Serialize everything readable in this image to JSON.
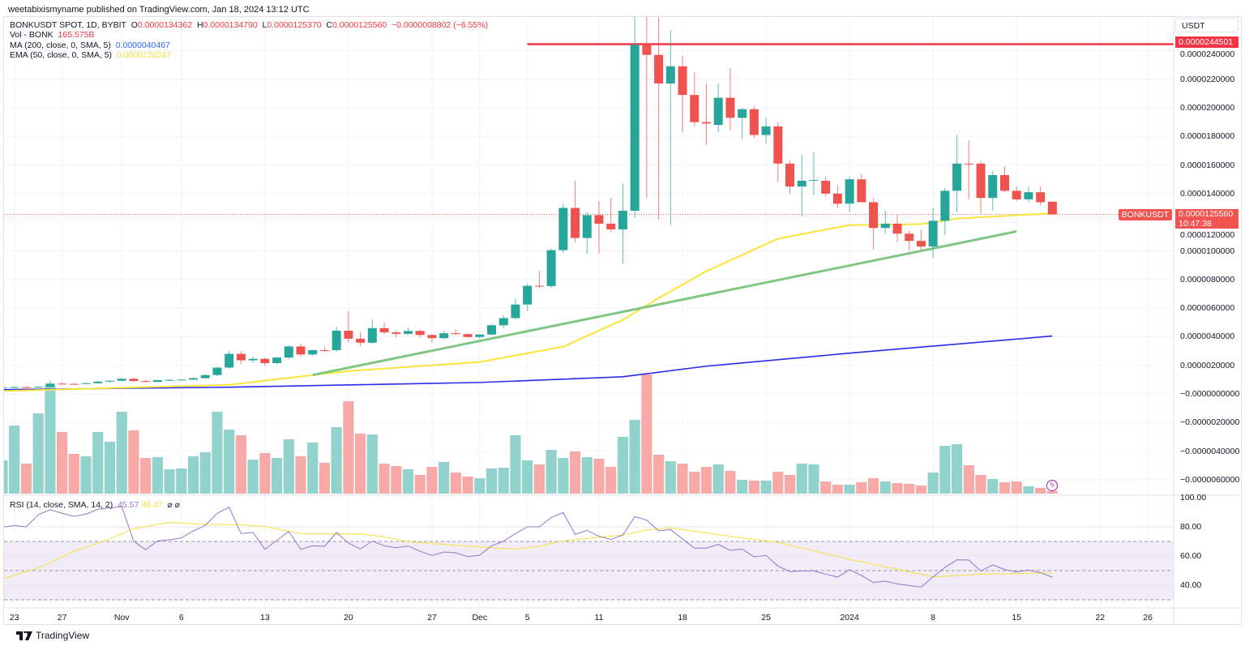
{
  "header": {
    "published": "weetabixismyname published on TradingView.com, Jan 18, 2024 13:12 UTC"
  },
  "legend": {
    "symbol": "BONKUSDT SPOT, 1D, BYBIT",
    "o_label": "O",
    "o": "0.0000134362",
    "h_label": "H",
    "h": "0.0000134790",
    "l_label": "L",
    "l": "0.0000125370",
    "c_label": "C",
    "c": "0.0000125560",
    "change": "−0.0000008802 (−6.55%)",
    "vol_label": "Vol - BONK",
    "vol": "165.575B",
    "ma_label": "MA (200, close, 0, SMA, 5)",
    "ma": "0.0000040467",
    "ema_label": "EMA (50, close, 0, SMA, 5)",
    "ema": "0.0000126247"
  },
  "rsi_legend": {
    "label": "RSI (14, close, SMA, 14, 2)",
    "rsi": "45.57",
    "rsi_ma": "48.47",
    "icons": "⌀ ⌀"
  },
  "price_axis": {
    "currency": "USDT",
    "ticks": [
      [
        "0.0000240000",
        2.4e-05
      ],
      [
        "0.0000220000",
        2.2e-05
      ],
      [
        "0.0000200000",
        2e-05
      ],
      [
        "0.0000180000",
        1.8e-05
      ],
      [
        "0.0000160000",
        1.6e-05
      ],
      [
        "0.0000140000",
        1.4e-05
      ],
      [
        "0.0000120000",
        1.2e-05
      ],
      [
        "0.0000100000",
        1e-05
      ],
      [
        "0.0000080000",
        8e-06
      ],
      [
        "0.0000060000",
        6e-06
      ],
      [
        "0.0000040000",
        4e-06
      ],
      [
        "0.0000020000",
        2e-06
      ],
      [
        "−0.0000000000",
        0
      ],
      [
        "−0.0000020000",
        -2e-06
      ],
      [
        "−0.0000040000",
        -4e-06
      ],
      [
        "−0.0000060000",
        -6e-06
      ]
    ],
    "resistance_label": "0.0000244501",
    "symbol_tag": "BONKUSDT",
    "last_price": "0.0000125560",
    "countdown": "10:47:38"
  },
  "rsi_axis": {
    "ticks": [
      [
        "100.00",
        100
      ],
      [
        "80.00",
        80
      ],
      [
        "60.00",
        60
      ],
      [
        "40.00",
        40
      ]
    ],
    "bands": [
      70,
      50,
      30
    ]
  },
  "time_axis": [
    [
      "23",
      "2023-10-23"
    ],
    [
      "27",
      "2023-10-27"
    ],
    [
      "Nov",
      "2023-11-01"
    ],
    [
      "6",
      "2023-11-06"
    ],
    [
      "13",
      "2023-11-13"
    ],
    [
      "20",
      "2023-11-20"
    ],
    [
      "27",
      "2023-11-27"
    ],
    [
      "Dec",
      "2023-12-01"
    ],
    [
      "5",
      "2023-12-05"
    ],
    [
      "11",
      "2023-12-11"
    ],
    [
      "18",
      "2023-12-18"
    ],
    [
      "25",
      "2023-12-25"
    ],
    [
      "2024",
      "2024-01-01"
    ],
    [
      "8",
      "2024-01-08"
    ],
    [
      "15",
      "2024-01-15"
    ],
    [
      "22",
      "2024-01-22"
    ],
    [
      "26",
      "2024-01-26"
    ]
  ],
  "footer": {
    "brand": "TradingView"
  },
  "colors": {
    "up": "#26a69a",
    "down": "#ef5350",
    "vol_up": "#92d2cc",
    "vol_down": "#f7a9a7",
    "ma200": "#2a2ae8",
    "ema50": "#f9e53a",
    "trendline": "#81c784",
    "resistance": "#f23645",
    "rsi": "#9575cd",
    "rsi_ma": "#f7e13d",
    "rsi_band": "#ede7f6"
  },
  "chart_data": {
    "type": "candlestick",
    "symbol": "BONKUSDT",
    "interval": "1D",
    "volume_unit": "B",
    "candles_fields": [
      "date",
      "open",
      "high",
      "low",
      "close",
      "volume"
    ],
    "candles": [
      [
        "2023-10-22",
        4.5e-07,
        5e-07,
        4e-07,
        4.6e-07,
        2050
      ],
      [
        "2023-10-23",
        4.6e-07,
        5e-07,
        4.2e-07,
        4.8e-07,
        4200
      ],
      [
        "2023-10-24",
        4.8e-07,
        5.2e-07,
        4.4e-07,
        4.7e-07,
        1850
      ],
      [
        "2023-10-25",
        4.7e-07,
        5.5e-07,
        4.3e-07,
        5e-07,
        4950
      ],
      [
        "2023-10-26",
        5e-07,
        9.5e-07,
        4.6e-07,
        7.2e-07,
        6650
      ],
      [
        "2023-10-27",
        7.2e-07,
        8.2e-07,
        6.6e-07,
        7e-07,
        3800
      ],
      [
        "2023-10-28",
        7e-07,
        7.8e-07,
        6.5e-07,
        6.9e-07,
        2450
      ],
      [
        "2023-10-29",
        6.9e-07,
        7.8e-07,
        6.6e-07,
        7.5e-07,
        2300
      ],
      [
        "2023-10-30",
        7.5e-07,
        9e-07,
        7.2e-07,
        8.6e-07,
        3800
      ],
      [
        "2023-10-31",
        8.6e-07,
        9.5e-07,
        8e-07,
        9.2e-07,
        3200
      ],
      [
        "2023-11-01",
        9.2e-07,
        1.1e-06,
        8.8e-07,
        1.06e-06,
        5050
      ],
      [
        "2023-11-02",
        1.06e-06,
        1.15e-06,
        8.8e-07,
        9e-07,
        3900
      ],
      [
        "2023-11-03",
        9e-07,
        9.8e-07,
        8e-07,
        8.4e-07,
        2200
      ],
      [
        "2023-11-04",
        8.4e-07,
        1e-06,
        8.2e-07,
        9.6e-07,
        2250
      ],
      [
        "2023-11-05",
        9.6e-07,
        1.04e-06,
        9e-07,
        9.8e-07,
        1500
      ],
      [
        "2023-11-06",
        9.8e-07,
        1.05e-06,
        9.4e-07,
        1e-06,
        1550
      ],
      [
        "2023-11-07",
        1e-06,
        1.15e-06,
        9.6e-07,
        1.1e-06,
        2300
      ],
      [
        "2023-11-08",
        1.1e-06,
        1.35e-06,
        1.06e-06,
        1.32e-06,
        2550
      ],
      [
        "2023-11-09",
        1.32e-06,
        1.9e-06,
        1.25e-06,
        1.84e-06,
        5050
      ],
      [
        "2023-11-10",
        1.84e-06,
        3e-06,
        1.75e-06,
        2.8e-06,
        3950
      ],
      [
        "2023-11-11",
        2.8e-06,
        3e-06,
        2.1e-06,
        2.35e-06,
        3600
      ],
      [
        "2023-11-12",
        2.35e-06,
        2.6e-06,
        2.15e-06,
        2.45e-06,
        2100
      ],
      [
        "2023-11-13",
        2.45e-06,
        2.55e-06,
        1.95e-06,
        2.15e-06,
        2500
      ],
      [
        "2023-11-14",
        2.15e-06,
        2.6e-06,
        2.08e-06,
        2.54e-06,
        2200
      ],
      [
        "2023-11-15",
        2.54e-06,
        3.4e-06,
        2.45e-06,
        3.32e-06,
        3350
      ],
      [
        "2023-11-16",
        3.32e-06,
        3.5e-06,
        2.6e-06,
        2.76e-06,
        2300
      ],
      [
        "2023-11-17",
        2.76e-06,
        3.1e-06,
        2.65e-06,
        3.06e-06,
        3150
      ],
      [
        "2023-11-18",
        3.06e-06,
        3.3e-06,
        2.95e-06,
        3.04e-06,
        1900
      ],
      [
        "2023-11-19",
        3.06e-06,
        4.7e-06,
        2.95e-06,
        4.42e-06,
        4100
      ],
      [
        "2023-11-20",
        4.42e-06,
        5.8e-06,
        3.6e-06,
        3.86e-06,
        5700
      ],
      [
        "2023-11-21",
        3.86e-06,
        4.3e-06,
        3.35e-06,
        3.58e-06,
        3700
      ],
      [
        "2023-11-22",
        3.58e-06,
        5.2e-06,
        3.5e-06,
        4.6e-06,
        3650
      ],
      [
        "2023-11-23",
        4.6e-06,
        5e-06,
        4.15e-06,
        4.3e-06,
        1850
      ],
      [
        "2023-11-24",
        4.3e-06,
        4.45e-06,
        3.95e-06,
        4.2e-06,
        1700
      ],
      [
        "2023-11-25",
        4.2e-06,
        4.65e-06,
        4.14e-06,
        4.4e-06,
        1500
      ],
      [
        "2023-11-26",
        4.4e-06,
        4.5e-06,
        3.94e-06,
        4.12e-06,
        1150
      ],
      [
        "2023-11-27",
        4.12e-06,
        4.2e-06,
        3.6e-06,
        3.9e-06,
        1650
      ],
      [
        "2023-11-28",
        3.9e-06,
        4.4e-06,
        3.8e-06,
        4.24e-06,
        1950
      ],
      [
        "2023-11-29",
        4.24e-06,
        4.5e-06,
        4.1e-06,
        4.18e-06,
        1300
      ],
      [
        "2023-11-30",
        4.18e-06,
        4.25e-06,
        3.9e-06,
        3.98e-06,
        1050
      ],
      [
        "2023-12-01",
        3.98e-06,
        4.2e-06,
        3.85e-06,
        4.15e-06,
        950
      ],
      [
        "2023-12-02",
        4.15e-06,
        4.9e-06,
        4.1e-06,
        4.8e-06,
        1550
      ],
      [
        "2023-12-03",
        4.8e-06,
        5.5e-06,
        4.6e-06,
        5.3e-06,
        1600
      ],
      [
        "2023-12-04",
        5.3e-06,
        6.7e-06,
        5.2e-06,
        6.25e-06,
        3600
      ],
      [
        "2023-12-05",
        6.25e-06,
        7.7e-06,
        5.8e-06,
        7.56e-06,
        2050
      ],
      [
        "2023-12-06",
        7.56e-06,
        8.6e-06,
        7.4e-06,
        7.54e-06,
        1800
      ],
      [
        "2023-12-07",
        7.54e-06,
        1.015e-05,
        7.4e-06,
        1.005e-05,
        2700
      ],
      [
        "2023-12-08",
        1.005e-05,
        1.33e-05,
        9.85e-06,
        1.3e-05,
        2200
      ],
      [
        "2023-12-09",
        1.3e-05,
        1.49e-05,
        1.06e-05,
        1.09e-05,
        2600
      ],
      [
        "2023-12-10",
        1.09e-05,
        1.27e-05,
        9.8e-06,
        1.25e-05,
        2250
      ],
      [
        "2023-12-11",
        1.25e-05,
        1.35e-05,
        9.8e-06,
        1.19e-05,
        2150
      ],
      [
        "2023-12-12",
        1.19e-05,
        1.37e-05,
        1.13e-05,
        1.15e-05,
        1650
      ],
      [
        "2023-12-13",
        1.15e-05,
        1.47e-05,
        9.1e-06,
        1.28e-05,
        3500
      ],
      [
        "2023-12-14",
        1.28e-05,
        2.75e-05,
        1.23e-05,
        2.44e-05,
        4550
      ],
      [
        "2023-12-15",
        2.44e-05,
        2.65e-05,
        1.37e-05,
        2.37e-05,
        7350
      ],
      [
        "2023-12-16",
        2.37e-05,
        2.7e-05,
        1.22e-05,
        2.17e-05,
        2400
      ],
      [
        "2023-12-17",
        2.17e-05,
        2.54e-05,
        1.18e-05,
        2.29e-05,
        2000
      ],
      [
        "2023-12-18",
        2.29e-05,
        2.36e-05,
        1.83e-05,
        2.09e-05,
        1850
      ],
      [
        "2023-12-19",
        2.09e-05,
        2.25e-05,
        1.87e-05,
        1.9e-05,
        1350
      ],
      [
        "2023-12-20",
        1.9e-05,
        2.17e-05,
        1.74e-05,
        1.89e-05,
        1650
      ],
      [
        "2023-12-21",
        1.88e-05,
        2.17e-05,
        1.83e-05,
        2.07e-05,
        1800
      ],
      [
        "2023-12-22",
        2.07e-05,
        2.28e-05,
        1.84e-05,
        1.93e-05,
        1400
      ],
      [
        "2023-12-23",
        1.93e-05,
        2e-05,
        1.78e-05,
        1.99e-05,
        850
      ],
      [
        "2023-12-24",
        1.99e-05,
        2.01e-05,
        1.79e-05,
        1.81e-05,
        800
      ],
      [
        "2023-12-25",
        1.81e-05,
        1.93e-05,
        1.75e-05,
        1.87e-05,
        800
      ],
      [
        "2023-12-26",
        1.87e-05,
        1.9e-05,
        1.48e-05,
        1.61e-05,
        1350
      ],
      [
        "2023-12-27",
        1.61e-05,
        1.63e-05,
        1.4e-05,
        1.45e-05,
        1150
      ],
      [
        "2023-12-28",
        1.45e-05,
        1.67e-05,
        1.24e-05,
        1.49e-05,
        1850
      ],
      [
        "2023-12-29",
        1.49e-05,
        1.69e-05,
        1.39e-05,
        1.495e-05,
        1800
      ],
      [
        "2023-12-30",
        1.49e-05,
        1.52e-05,
        1.38e-05,
        1.4e-05,
        750
      ],
      [
        "2023-12-31",
        1.4e-05,
        1.46e-05,
        1.3e-05,
        1.33e-05,
        550
      ],
      [
        "2024-01-01",
        1.33e-05,
        1.52e-05,
        1.27e-05,
        1.5e-05,
        550
      ],
      [
        "2024-01-02",
        1.5e-05,
        1.54e-05,
        1.35e-05,
        1.34e-05,
        700
      ],
      [
        "2024-01-03",
        1.34e-05,
        1.37e-05,
        1.01e-05,
        1.16e-05,
        950
      ],
      [
        "2024-01-04",
        1.16e-05,
        1.28e-05,
        1.12e-05,
        1.19e-05,
        750
      ],
      [
        "2024-01-05",
        1.19e-05,
        1.25e-05,
        1.06e-05,
        1.12e-05,
        650
      ],
      [
        "2024-01-06",
        1.12e-05,
        1.14e-05,
        1e-05,
        1.07e-05,
        600
      ],
      [
        "2024-01-07",
        1.07e-05,
        1.15e-05,
        1e-05,
        1.03e-05,
        500
      ],
      [
        "2024-01-08",
        1.03e-05,
        1.3e-05,
        9.5e-06,
        1.21e-05,
        1300
      ],
      [
        "2024-01-09",
        1.21e-05,
        1.44e-05,
        1.11e-05,
        1.42e-05,
        2950
      ],
      [
        "2024-01-10",
        1.42e-05,
        1.81e-05,
        1.27e-05,
        1.61e-05,
        3050
      ],
      [
        "2024-01-11",
        1.61e-05,
        1.77e-05,
        1.36e-05,
        1.608e-05,
        1750
      ],
      [
        "2024-01-12",
        1.61e-05,
        1.63e-05,
        1.26e-05,
        1.37e-05,
        1150
      ],
      [
        "2024-01-13",
        1.37e-05,
        1.56e-05,
        1.28e-05,
        1.53e-05,
        900
      ],
      [
        "2024-01-14",
        1.53e-05,
        1.59e-05,
        1.41e-05,
        1.42e-05,
        700
      ],
      [
        "2024-01-15",
        1.42e-05,
        1.45e-05,
        1.35e-05,
        1.36e-05,
        750
      ],
      [
        "2024-01-16",
        1.36e-05,
        1.45e-05,
        1.34e-05,
        1.41e-05,
        450
      ],
      [
        "2024-01-17",
        1.41e-05,
        1.45e-05,
        1.32e-05,
        1.34e-05,
        350
      ],
      [
        "2024-01-18",
        1.34362e-05,
        1.3479e-05,
        1.2537e-05,
        1.2556e-05,
        165.575
      ]
    ],
    "ma200": [
      [
        "2023-10-22",
        3e-07
      ],
      [
        "2023-11-10",
        4.7e-07
      ],
      [
        "2023-12-01",
        8e-07
      ],
      [
        "2023-12-13",
        1.2e-06
      ],
      [
        "2023-12-20",
        1.94e-06
      ],
      [
        "2024-01-01",
        2.85e-06
      ],
      [
        "2024-01-18",
        4.0467e-06
      ]
    ],
    "ema50": [
      [
        "2023-10-22",
        2e-07
      ],
      [
        "2023-11-10",
        6.4e-07
      ],
      [
        "2023-11-20",
        1.6e-06
      ],
      [
        "2023-12-01",
        2.23e-06
      ],
      [
        "2023-12-08",
        3.3e-06
      ],
      [
        "2023-12-13",
        5.18e-06
      ],
      [
        "2023-12-16",
        6.7e-06
      ],
      [
        "2023-12-20",
        8.58e-06
      ],
      [
        "2023-12-26",
        1.085e-05
      ],
      [
        "2024-01-01",
        1.18e-05
      ],
      [
        "2024-01-07",
        1.187e-05
      ],
      [
        "2024-01-10",
        1.226e-05
      ],
      [
        "2024-01-18",
        1.26247e-05
      ]
    ],
    "trendline": [
      [
        "2023-11-17",
        1.32e-06
      ],
      [
        "2024-01-15",
        1.136e-05
      ]
    ],
    "resistance": {
      "price": 2.44501e-05,
      "from": "2023-12-05"
    },
    "rsi": [
      79.8,
      80.9,
      80,
      88.3,
      91.7,
      89.3,
      87.2,
      88.7,
      92,
      93,
      93.9,
      70.2,
      64.3,
      70.4,
      71.1,
      72.4,
      77.2,
      80.9,
      89.3,
      93.5,
      75.4,
      76.1,
      64.6,
      70.7,
      76.8,
      64.6,
      67,
      66.7,
      76.1,
      68.9,
      64.8,
      70.2,
      67,
      65.7,
      66.9,
      63.3,
      60.4,
      62.8,
      62.2,
      59.6,
      60.6,
      67,
      70.2,
      75.4,
      80,
      80,
      86.5,
      89.8,
      74.8,
      77.6,
      73.5,
      71.3,
      74.4,
      87.0,
      84.6,
      77.2,
      78.1,
      71.7,
      65.4,
      65.4,
      68,
      63.9,
      64.8,
      59.4,
      60.4,
      53.1,
      49.3,
      49.8,
      49.8,
      47.6,
      45.6,
      50.6,
      46.7,
      41.9,
      42.8,
      40.9,
      39.8,
      38.7,
      45.7,
      52.2,
      57.4,
      57.2,
      49.8,
      53.9,
      50.7,
      49.1,
      50.4,
      48.5,
      45.57
    ],
    "rsi_ma": [
      [
        "2023-10-22",
        44.5
      ],
      [
        "2023-10-25",
        51.7
      ],
      [
        "2023-10-28",
        63.4
      ],
      [
        "2023-10-31",
        71.7
      ],
      [
        "2023-11-02",
        78.7
      ],
      [
        "2023-11-05",
        83.1
      ],
      [
        "2023-11-07",
        82
      ],
      [
        "2023-11-09",
        81.5
      ],
      [
        "2023-11-11",
        81.5
      ],
      [
        "2023-11-13",
        80.2
      ],
      [
        "2023-11-16",
        75.4
      ],
      [
        "2023-11-21",
        75.1
      ],
      [
        "2023-11-23",
        73.2
      ],
      [
        "2023-11-25",
        69.8
      ],
      [
        "2023-11-28",
        68
      ],
      [
        "2023-12-01",
        66.2
      ],
      [
        "2023-12-04",
        64.8
      ],
      [
        "2023-12-06",
        66.8
      ],
      [
        "2023-12-08",
        70.4
      ],
      [
        "2023-12-13",
        74.4
      ],
      [
        "2023-12-15",
        77.8
      ],
      [
        "2023-12-17",
        79.4
      ],
      [
        "2023-12-22",
        73.5
      ],
      [
        "2023-12-26",
        69.4
      ],
      [
        "2024-01-01",
        57.8
      ],
      [
        "2024-01-05",
        51
      ],
      [
        "2024-01-08",
        45.7
      ],
      [
        "2024-01-12",
        47.6
      ],
      [
        "2024-01-18",
        48.47
      ]
    ],
    "grid": true
  }
}
